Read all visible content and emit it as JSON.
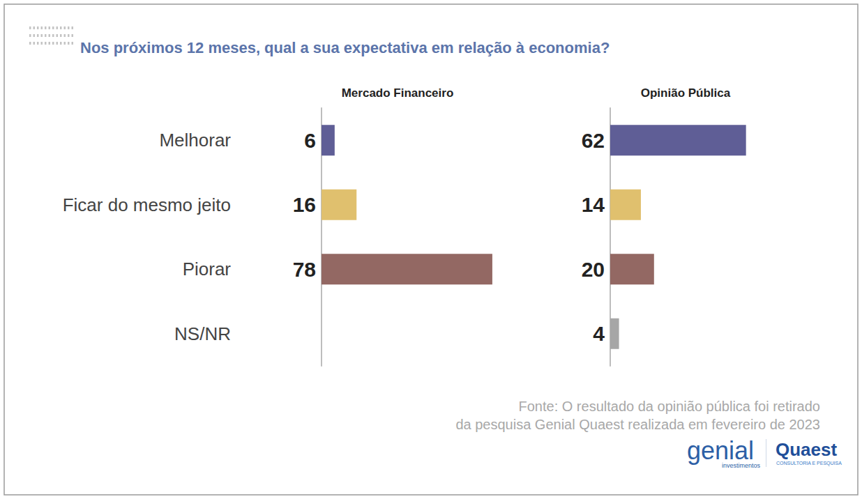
{
  "title": "Nos próximos 12 meses, qual a sua expectativa em relação à economia?",
  "annotations": [
    "Fonte: O resultado da opinião pública foi retirado",
    "da pesquisa Genial Quaest realizada em fevereiro de 2023"
  ],
  "logos": {
    "genial": [
      "genial",
      "investimentos"
    ],
    "quaest": [
      "Quaest",
      "CONSULTORIA E PESQUISA"
    ]
  },
  "chart_data": [
    {
      "type": "bar",
      "title": "Mercado Financeiro",
      "orientation": "horizontal",
      "categories": [
        "Melhorar",
        "Ficar do mesmo jeito",
        "Piorar",
        "NS/NR"
      ],
      "values": [
        6,
        16,
        78,
        null
      ],
      "colors": [
        "#5f5e96",
        "#e0c06e",
        "#936863",
        "#a6a6a6"
      ],
      "xlim": [
        0,
        100
      ],
      "data_labels": true,
      "tick_labels": "y",
      "grid": false
    },
    {
      "type": "bar",
      "title": "Opinião Pública",
      "orientation": "horizontal",
      "categories": [
        "Melhorar",
        "Ficar do mesmo jeito",
        "Piorar",
        "NS/NR"
      ],
      "values": [
        62,
        14,
        20,
        4
      ],
      "colors": [
        "#5f5e96",
        "#e0c06e",
        "#936863",
        "#a6a6a6"
      ],
      "xlim": [
        0,
        100
      ],
      "data_labels": true,
      "tick_labels": false,
      "grid": false
    }
  ]
}
